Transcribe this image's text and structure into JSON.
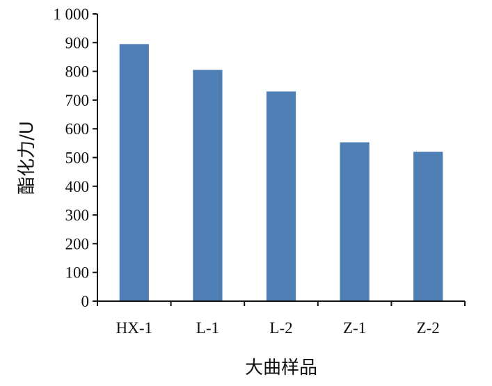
{
  "chart_data": {
    "type": "bar",
    "categories": [
      "HX-1",
      "L-1",
      "L-2",
      "Z-1",
      "Z-2"
    ],
    "values": [
      895,
      805,
      730,
      553,
      520
    ],
    "xlabel": "大曲样品",
    "ylabel": "酯化力/U",
    "ylim": [
      0,
      1000
    ],
    "yticks": [
      0,
      100,
      200,
      300,
      400,
      500,
      600,
      700,
      800,
      900,
      1000
    ],
    "ytick_labels": [
      "0",
      "100",
      "200",
      "300",
      "400",
      "500",
      "600",
      "700",
      "800",
      "900",
      "1 000"
    ],
    "grid": false,
    "legend": "none",
    "colors": {
      "bar": "#4f7eb5",
      "axis": "#111111"
    }
  }
}
